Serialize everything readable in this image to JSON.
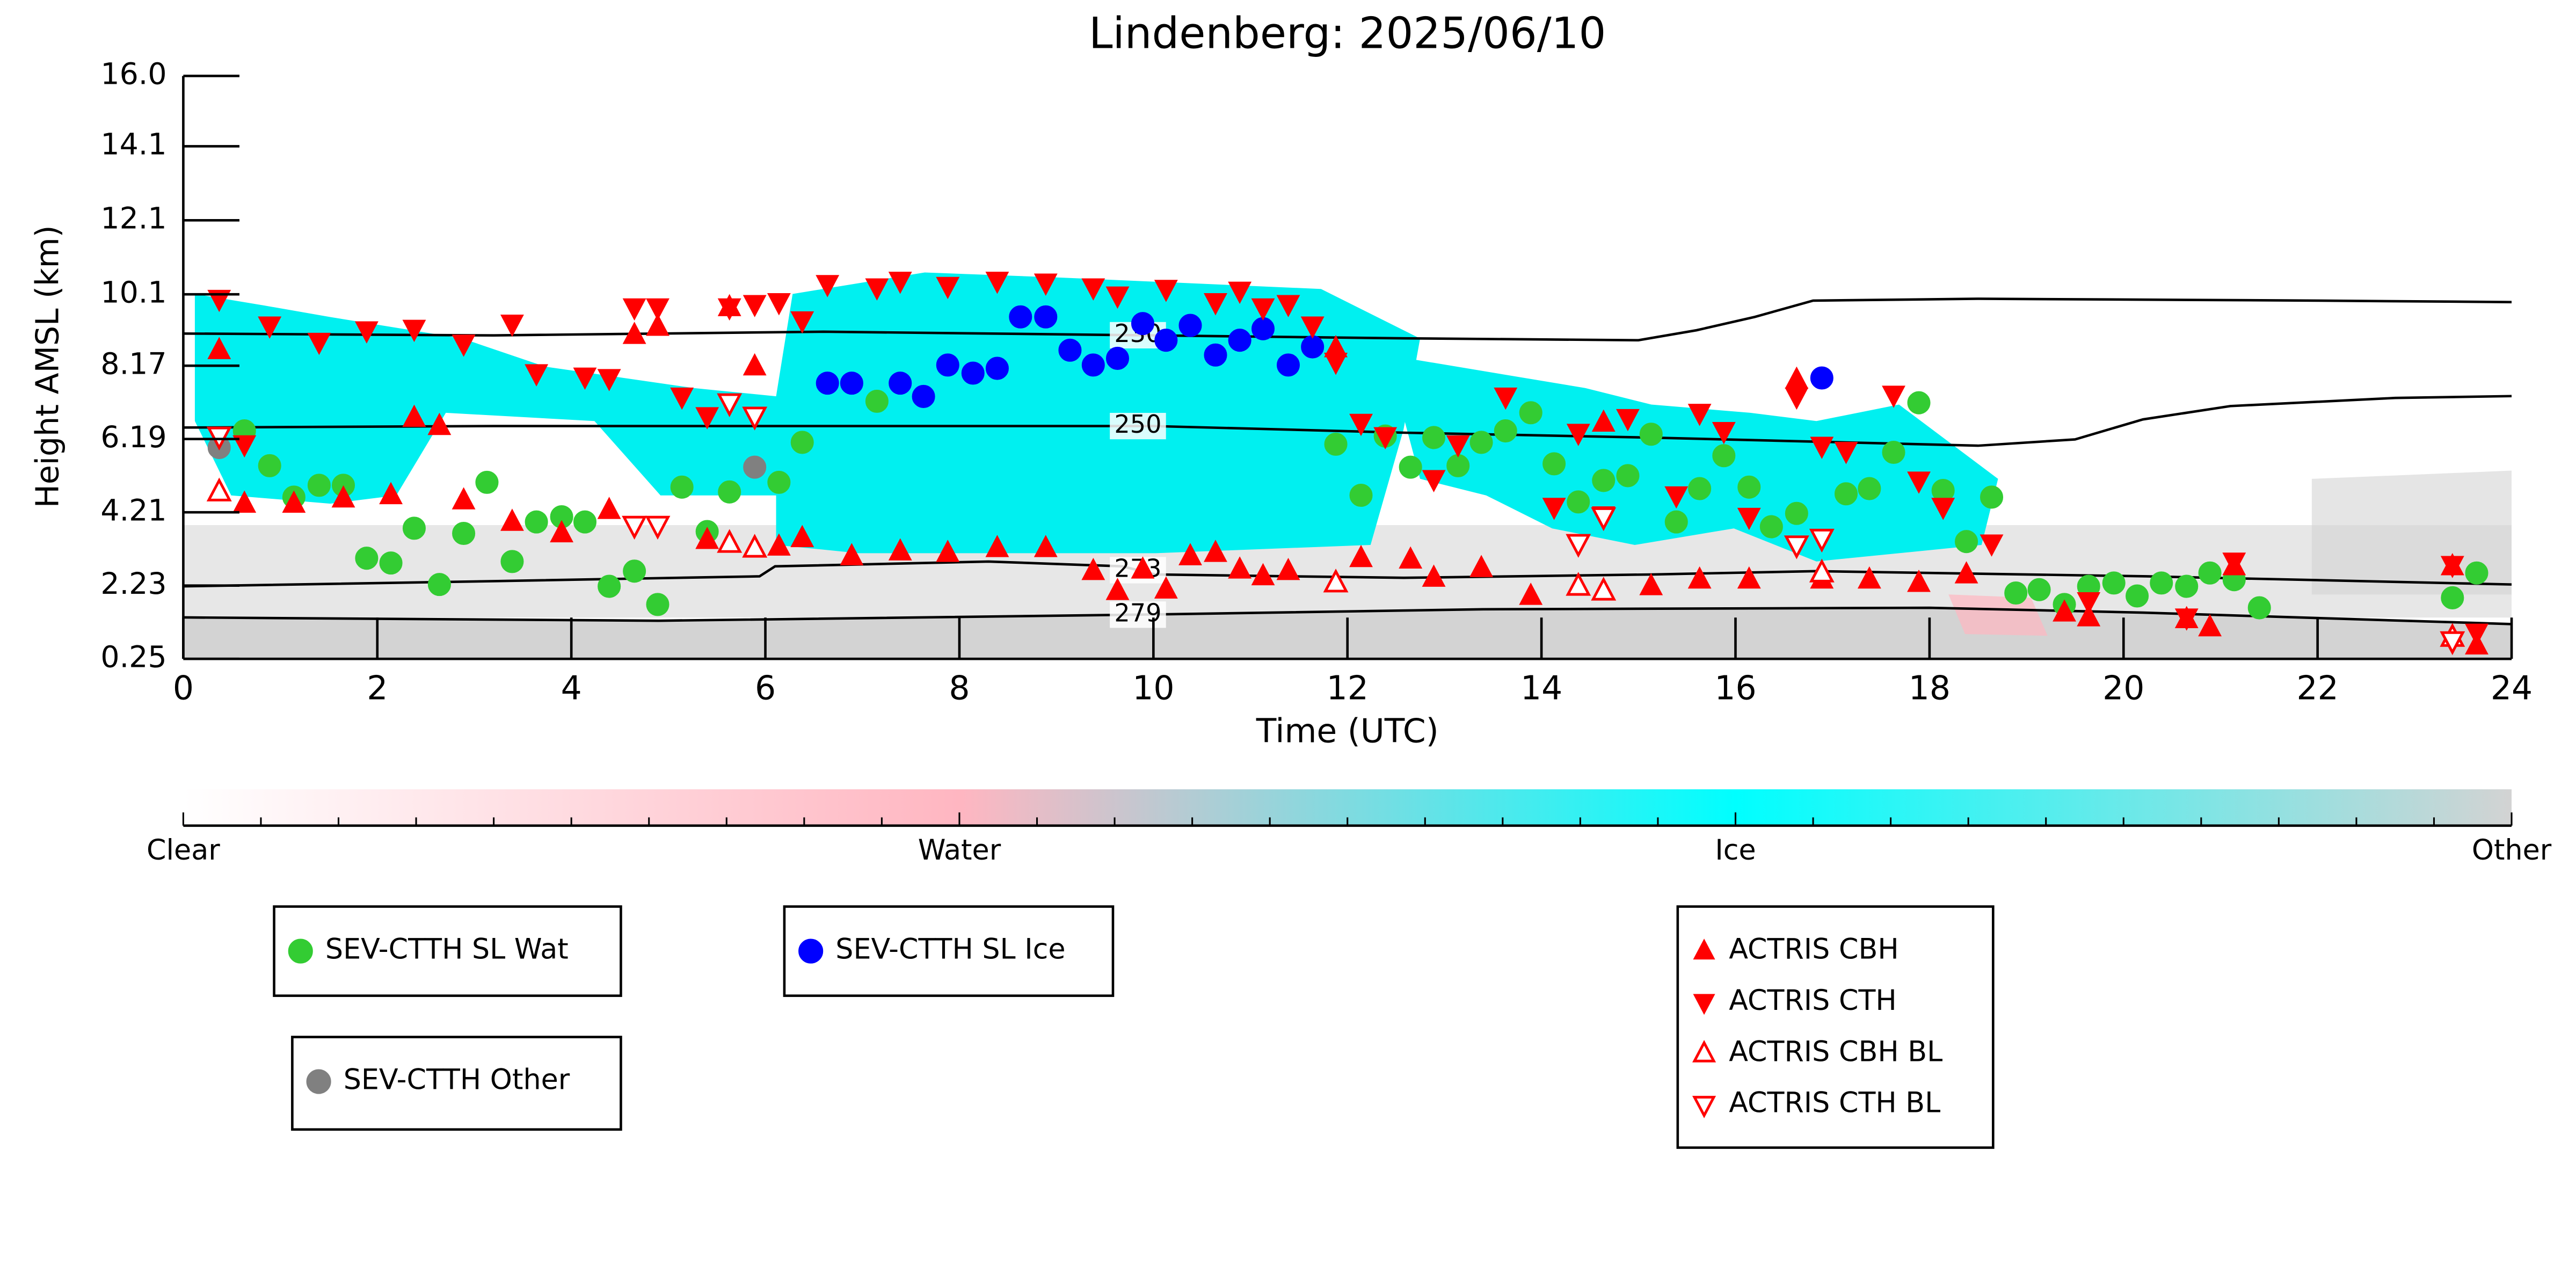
{
  "chart_data": {
    "type": "scatter",
    "title": "Lindenberg: 2025/06/10",
    "x_label": "Time (UTC)",
    "y_label": "Height AMSL (km)",
    "xlim": [
      0,
      24
    ],
    "xticks": [
      0,
      2,
      4,
      6,
      8,
      10,
      12,
      14,
      16,
      18,
      20,
      22,
      24
    ],
    "ylim": [
      0.25,
      16
    ],
    "yticks": [
      0.25,
      2.23,
      4.21,
      6.19,
      8.17,
      10.1,
      12.1,
      14.1,
      {
        "value": 16,
        "label": "16.0"
      }
    ],
    "grid": false,
    "series": [
      {
        "name": "SEV-CTTH SL Wat",
        "color": "#33cc33",
        "marker": "circle",
        "filled": true,
        "x": [
          0.63,
          0.89,
          1.14,
          1.4,
          1.65,
          1.89,
          2.14,
          2.38,
          2.64,
          2.89,
          3.13,
          3.39,
          3.64,
          3.9,
          4.14,
          4.39,
          4.65,
          4.89,
          5.14,
          5.4,
          5.63,
          6.14,
          6.38,
          7.15,
          11.88,
          12.14,
          12.39,
          12.65,
          12.89,
          13.14,
          13.38,
          13.63,
          13.89,
          14.13,
          14.38,
          14.64,
          14.89,
          15.13,
          15.39,
          15.63,
          15.88,
          16.14,
          16.37,
          16.63,
          17.14,
          17.38,
          17.63,
          17.89,
          18.14,
          18.38,
          18.64,
          18.89,
          19.13,
          19.39,
          19.64,
          19.9,
          20.14,
          20.39,
          20.65,
          20.89,
          21.14,
          21.4,
          23.39,
          23.64
        ],
        "values": [
          6.41,
          5.47,
          4.62,
          4.94,
          4.94,
          2.97,
          2.84,
          3.78,
          2.26,
          3.64,
          5.02,
          2.88,
          3.95,
          4.09,
          3.95,
          2.21,
          2.62,
          1.72,
          4.89,
          3.69,
          4.76,
          5.02,
          6.1,
          7.21,
          6.05,
          4.67,
          6.27,
          5.43,
          6.23,
          5.47,
          6.1,
          6.41,
          6.9,
          5.52,
          4.49,
          5.07,
          5.2,
          6.32,
          3.95,
          4.85,
          5.74,
          4.89,
          3.82,
          4.18,
          4.71,
          4.85,
          5.83,
          7.17,
          4.8,
          3.42,
          4.62,
          2.03,
          2.12,
          1.72,
          2.21,
          2.3,
          1.95,
          2.3,
          2.21,
          2.57,
          2.39,
          1.63,
          1.9,
          2.57
        ]
      },
      {
        "name": "SEV-CTTH SL Ice",
        "color": "#0000ff",
        "marker": "circle",
        "filled": true,
        "x": [
          6.64,
          6.89,
          7.39,
          7.63,
          7.88,
          8.14,
          8.39,
          8.63,
          8.89,
          9.14,
          9.38,
          9.63,
          9.89,
          10.13,
          10.38,
          10.64,
          10.89,
          11.13,
          11.39,
          11.64,
          16.89
        ],
        "values": [
          7.7,
          7.7,
          7.7,
          7.34,
          8.19,
          7.97,
          8.1,
          9.49,
          9.49,
          8.59,
          8.19,
          8.37,
          9.31,
          8.86,
          9.26,
          8.46,
          8.86,
          9.17,
          8.19,
          8.68,
          7.84
        ]
      },
      {
        "name": "SEV-CTTH Other",
        "color": "#808080",
        "marker": "circle",
        "filled": true,
        "x": [
          0.37,
          5.89
        ],
        "values": [
          5.96,
          5.43
        ]
      },
      {
        "name": "ACTRIS CBH",
        "color": "#ff0000",
        "marker": "triangle-up",
        "filled": true,
        "x": [
          0.37,
          0.63,
          1.14,
          1.65,
          2.14,
          2.38,
          2.64,
          2.89,
          3.39,
          3.9,
          4.39,
          4.65,
          4.89,
          5.4,
          5.63,
          5.89,
          6.14,
          6.38,
          6.89,
          7.39,
          7.88,
          8.39,
          8.89,
          9.38,
          9.63,
          9.89,
          10.13,
          10.38,
          10.64,
          10.89,
          11.13,
          11.39,
          11.88,
          12.14,
          12.65,
          12.89,
          13.38,
          13.89,
          14.38,
          14.64,
          15.13,
          15.63,
          16.14,
          16.63,
          16.89,
          17.38,
          17.89,
          18.38,
          19.39,
          19.64,
          20.65,
          20.89,
          21.14,
          23.39,
          23.64
        ],
        "values": [
          8.59,
          4.44,
          4.44,
          4.58,
          4.67,
          6.76,
          6.54,
          4.53,
          3.95,
          3.64,
          4.27,
          9.0,
          9.22,
          3.46,
          9.75,
          8.15,
          3.28,
          3.51,
          3.02,
          3.15,
          3.11,
          3.24,
          3.24,
          2.62,
          2.08,
          2.66,
          2.12,
          3.02,
          3.11,
          2.66,
          2.48,
          2.62,
          8.64,
          2.97,
          2.93,
          2.44,
          2.7,
          1.95,
          2.21,
          6.63,
          2.21,
          2.39,
          2.39,
          7.79,
          2.39,
          2.39,
          2.3,
          2.53,
          1.5,
          1.37,
          1.32,
          1.1,
          2.75,
          2.75,
          0.61
        ]
      },
      {
        "name": "ACTRIS CTH",
        "color": "#ff0000",
        "marker": "triangle-down",
        "filled": true,
        "x": [
          0.37,
          0.63,
          0.89,
          1.4,
          1.89,
          2.38,
          2.89,
          3.39,
          3.64,
          4.14,
          4.39,
          4.65,
          4.89,
          5.14,
          5.4,
          5.63,
          5.89,
          6.14,
          6.38,
          6.64,
          7.15,
          7.39,
          7.88,
          8.39,
          8.89,
          9.38,
          9.63,
          10.13,
          10.64,
          10.89,
          11.13,
          11.39,
          11.64,
          11.88,
          12.14,
          12.39,
          12.89,
          13.14,
          13.63,
          14.13,
          14.38,
          14.64,
          14.89,
          15.39,
          15.63,
          15.88,
          16.14,
          16.63,
          16.89,
          17.14,
          17.63,
          17.89,
          18.14,
          18.64,
          19.64,
          20.65,
          21.14,
          23.39,
          23.64
        ],
        "values": [
          9.98,
          6.05,
          9.26,
          8.82,
          9.13,
          9.17,
          8.77,
          9.31,
          7.97,
          7.88,
          7.84,
          9.75,
          9.75,
          7.34,
          6.81,
          9.75,
          9.84,
          9.89,
          9.4,
          10.38,
          10.29,
          10.47,
          10.33,
          10.47,
          10.42,
          10.29,
          10.07,
          10.25,
          9.89,
          10.2,
          9.75,
          9.84,
          9.26,
          8.28,
          6.63,
          6.27,
          5.11,
          6.05,
          7.34,
          4.36,
          6.36,
          4.13,
          6.76,
          4.67,
          6.9,
          6.41,
          4.09,
          7.34,
          6.01,
          5.87,
          7.39,
          5.07,
          4.36,
          3.37,
          1.81,
          1.37,
          2.88,
          2.79,
          0.96
        ]
      },
      {
        "name": "ACTRIS CBH BL",
        "color": "#ff0000",
        "marker": "triangle-up",
        "filled": false,
        "x": [
          0.37,
          5.63,
          5.89,
          11.88,
          14.38,
          14.64,
          16.89,
          23.39
        ],
        "values": [
          4.76,
          3.37,
          3.24,
          2.3,
          2.21,
          2.08,
          2.57,
          0.83
        ]
      },
      {
        "name": "ACTRIS CTH BL",
        "color": "#ff0000",
        "marker": "triangle-down",
        "filled": false,
        "x": [
          0.37,
          4.65,
          4.89,
          5.63,
          5.89,
          14.38,
          14.64,
          16.63,
          16.89,
          23.39
        ],
        "values": [
          6.27,
          3.86,
          3.86,
          7.17,
          6.81,
          3.37,
          4.09,
          3.33,
          3.51,
          0.74
        ]
      }
    ],
    "contours": [
      {
        "label": "230",
        "color": "#000000",
        "x": [
          0,
          3.2,
          6.6,
          10,
          12.6,
          15,
          15.6,
          16.2,
          16.8,
          18.5,
          22,
          24
        ],
        "values": [
          9.04,
          8.99,
          9.09,
          8.99,
          8.91,
          8.86,
          9.13,
          9.49,
          9.93,
          9.98,
          9.93,
          9.89
        ]
      },
      {
        "label": "250",
        "color": "#000000",
        "x": [
          0,
          3.2,
          6.6,
          10,
          12.6,
          15.1,
          18.5,
          19.5,
          20.2,
          21.1,
          22.8,
          24
        ],
        "values": [
          6.5,
          6.54,
          6.54,
          6.54,
          6.36,
          6.23,
          6.01,
          6.18,
          6.72,
          7.08,
          7.3,
          7.35
        ]
      },
      {
        "label": "273",
        "color": "#000000",
        "x": [
          0,
          3.2,
          5.94,
          6.1,
          8.3,
          9.68,
          10.02,
          12.58,
          15.13,
          16.83,
          20.24,
          24
        ],
        "values": [
          2.21,
          2.35,
          2.48,
          2.75,
          2.88,
          2.75,
          2.53,
          2.44,
          2.53,
          2.62,
          2.48,
          2.26
        ]
      },
      {
        "label": "279",
        "color": "#000000",
        "x": [
          0,
          4.9,
          10,
          13.4,
          18,
          20.2,
          24
        ],
        "values": [
          1.37,
          1.28,
          1.45,
          1.59,
          1.63,
          1.5,
          1.19
        ]
      }
    ],
    "colorbar": {
      "labels": [
        "Clear",
        "Water",
        "Ice",
        "Other"
      ],
      "colors": [
        "#ffffff",
        "#ffb6c1",
        "#00ffff",
        "#d3d3d3"
      ]
    }
  }
}
